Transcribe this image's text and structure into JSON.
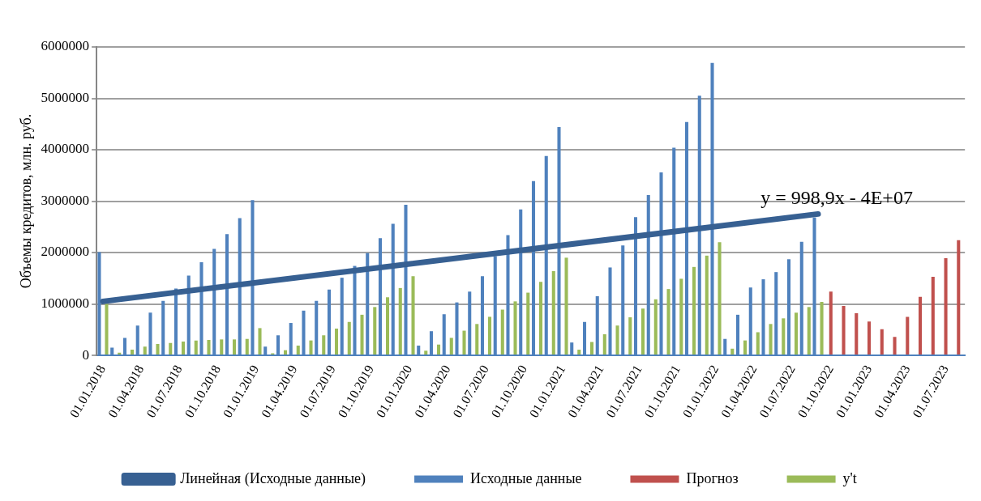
{
  "chart_data": {
    "type": "bar",
    "ylabel": "Объемы кредитов, млн. руб.",
    "categories": [
      "01.01.2018",
      null,
      null,
      "01.04.2018",
      null,
      null,
      "01.07.2018",
      null,
      null,
      "01.10.2018",
      null,
      null,
      "01.01.2019",
      null,
      null,
      "01.04.2019",
      null,
      null,
      "01.07.2019",
      null,
      null,
      "01.10.2019",
      null,
      null,
      "01.01.2020",
      null,
      null,
      "01.04.2020",
      null,
      null,
      "01.07.2020",
      null,
      null,
      "01.10.2020",
      null,
      null,
      "01.01.2021",
      null,
      null,
      "01.04.2021",
      null,
      null,
      "01.07.2021",
      null,
      null,
      "01.10.2021",
      null,
      null,
      "01.01.2022",
      null,
      null,
      "01.04.2022",
      null,
      null,
      "01.07.2022",
      null,
      null,
      "01.10.2022",
      null,
      null,
      "01.01.2023",
      null,
      null,
      "01.04.2023",
      null,
      null,
      "01.07.2023",
      null
    ],
    "series": [
      {
        "name": "Исходные данные",
        "color": "#4f81bd",
        "values": [
          2010000,
          150000,
          340000,
          580000,
          830000,
          1060000,
          1300000,
          1550000,
          1810000,
          2070000,
          2360000,
          2670000,
          3020000,
          170000,
          390000,
          630000,
          870000,
          1060000,
          1280000,
          1510000,
          1740000,
          1990000,
          2280000,
          2560000,
          2930000,
          190000,
          470000,
          800000,
          1030000,
          1240000,
          1540000,
          1930000,
          2340000,
          2840000,
          3390000,
          3880000,
          4440000,
          250000,
          650000,
          1150000,
          1710000,
          2140000,
          2690000,
          3120000,
          3560000,
          4040000,
          4540000,
          5050000,
          5690000,
          320000,
          790000,
          1320000,
          1480000,
          1620000,
          1870000,
          2210000,
          2680000,
          null,
          null,
          null,
          null,
          null,
          null,
          null,
          null,
          null,
          null,
          null
        ]
      },
      {
        "name": "Прогноз",
        "color": "#c0504d",
        "values": [
          null,
          null,
          null,
          null,
          null,
          null,
          null,
          null,
          null,
          null,
          null,
          null,
          null,
          null,
          null,
          null,
          null,
          null,
          null,
          null,
          null,
          null,
          null,
          null,
          null,
          null,
          null,
          null,
          null,
          null,
          null,
          null,
          null,
          null,
          null,
          null,
          null,
          null,
          null,
          null,
          null,
          null,
          null,
          null,
          null,
          null,
          null,
          null,
          null,
          null,
          null,
          null,
          null,
          null,
          null,
          null,
          null,
          1240000,
          960000,
          820000,
          660000,
          510000,
          360000,
          750000,
          1140000,
          1530000,
          1890000,
          2240000
        ]
      },
      {
        "name": "y't",
        "color": "#9bbb59",
        "values": [
          1000000,
          50000,
          110000,
          170000,
          220000,
          240000,
          270000,
          290000,
          300000,
          310000,
          310000,
          320000,
          530000,
          40000,
          100000,
          190000,
          290000,
          390000,
          520000,
          650000,
          790000,
          940000,
          1130000,
          1310000,
          1540000,
          90000,
          210000,
          340000,
          480000,
          610000,
          750000,
          890000,
          1050000,
          1220000,
          1430000,
          1640000,
          1900000,
          110000,
          260000,
          410000,
          580000,
          740000,
          910000,
          1090000,
          1290000,
          1490000,
          1720000,
          1940000,
          2200000,
          130000,
          290000,
          450000,
          610000,
          720000,
          830000,
          940000,
          1040000,
          null,
          null,
          null,
          null,
          null,
          null,
          null,
          null,
          null,
          null,
          null
        ]
      },
      {
        "name": "Линейная (Исходные данные)",
        "type": "line",
        "color": "#376092",
        "values": [
          1050000,
          null,
          null,
          null,
          null,
          null,
          null,
          null,
          null,
          null,
          null,
          null,
          null,
          null,
          null,
          null,
          null,
          null,
          null,
          null,
          null,
          null,
          null,
          null,
          null,
          null,
          null,
          null,
          null,
          null,
          null,
          null,
          null,
          null,
          null,
          null,
          null,
          null,
          null,
          null,
          null,
          null,
          null,
          null,
          null,
          null,
          null,
          null,
          null,
          null,
          null,
          null,
          null,
          null,
          null,
          null,
          2750000,
          null,
          null,
          null,
          null,
          null,
          null,
          null,
          null,
          null,
          null,
          null
        ]
      }
    ],
    "ylim": [
      0,
      6000000
    ],
    "yticks": [
      0,
      1000000,
      2000000,
      3000000,
      4000000,
      5000000,
      6000000
    ],
    "grid": "y",
    "legend": "bottom",
    "marker": "none",
    "annotations": [
      "y = 998,9x - 4E+07"
    ]
  }
}
